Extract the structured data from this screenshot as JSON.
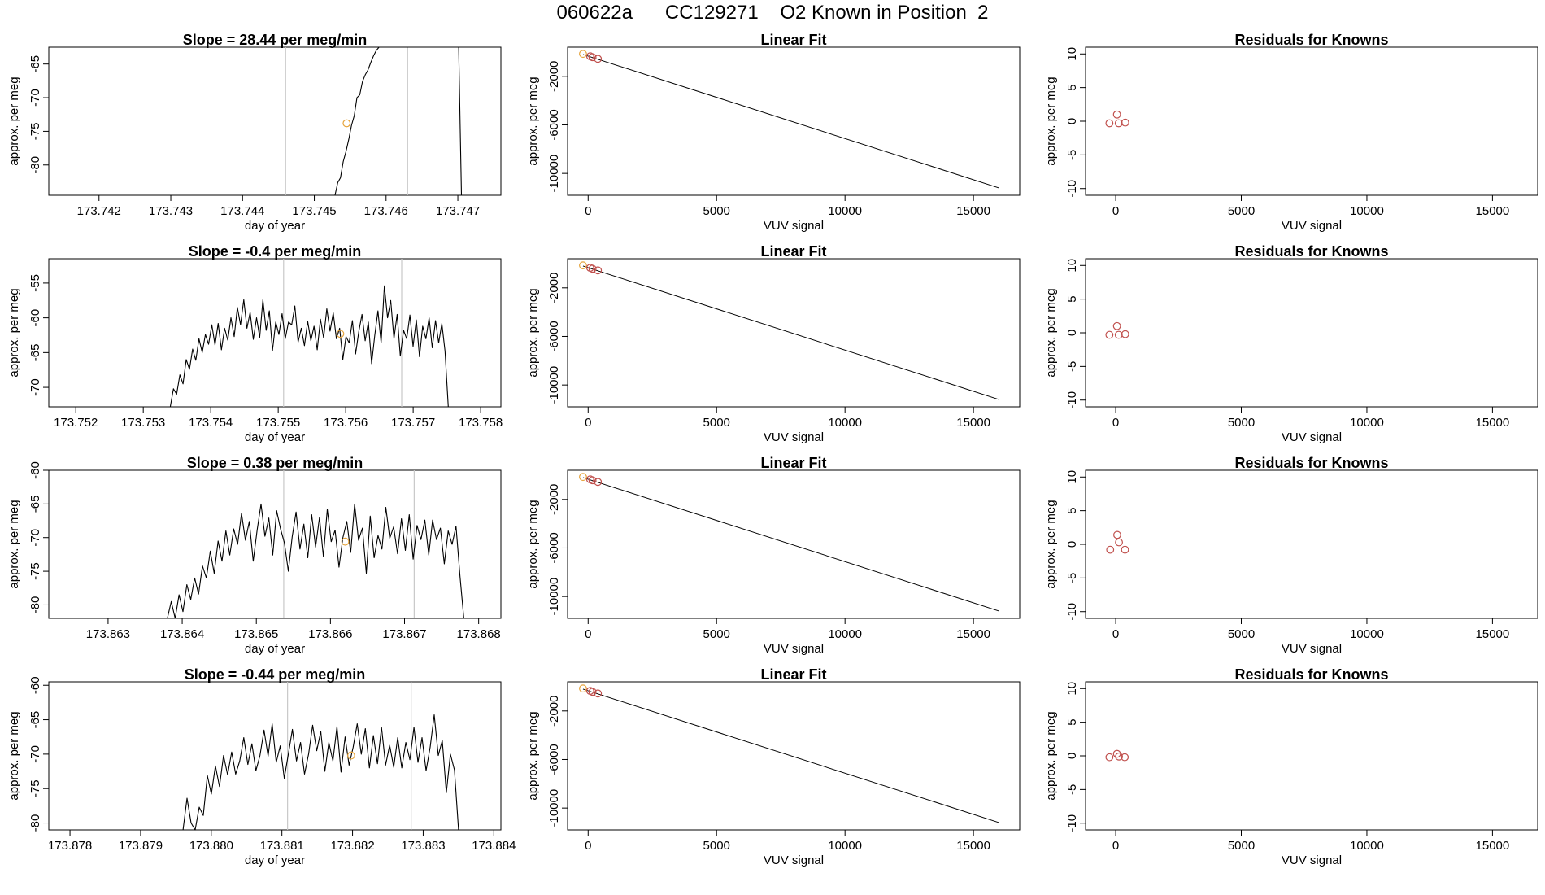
{
  "figure": {
    "title": "060622a      CC129271    O2 Known in Position  2"
  },
  "chart_data": [
    {
      "type": "line",
      "row": 0,
      "col": 0,
      "title": "Slope =  28.44  per meg/min",
      "xlabel": "day of year",
      "ylabel": "approx. per meg",
      "xlim": [
        173.7413,
        173.7476
      ],
      "ylim": [
        -84.5,
        -62.5
      ],
      "xticks": [
        "173.742",
        "173.743",
        "173.744",
        "173.745",
        "173.746",
        "173.747"
      ],
      "yticks": [
        -65,
        -70,
        -75,
        -80
      ],
      "vlines": [
        173.7446,
        173.7463
      ],
      "series_x_range": [
        173.74525,
        173.74705
      ],
      "series": [
        {
          "name": "trace",
          "values": [
            -84.5,
            -84.5,
            -82.6,
            -81.9,
            -79.5,
            -78.0,
            -76.2,
            -74.1,
            -72.7,
            -70.0,
            -69.6,
            -67.6,
            -66.6,
            -65.9,
            -64.8,
            -63.8,
            -63.0,
            -62.5,
            -62.5,
            -62.5,
            -62.5,
            -62.5,
            -62.5,
            -62.5,
            -62.5,
            -62.5,
            -62.5,
            -62.5,
            -62.5,
            -62.5,
            -62.5,
            -62.5,
            -62.5,
            -62.5,
            -62.5,
            -62.5,
            -62.5,
            -62.5,
            -62.5,
            -62.5,
            -62.5,
            -62.5,
            -62.5,
            -62.5,
            -62.5,
            -62.5,
            -62.5,
            -84.5
          ]
        }
      ],
      "points": [
        {
          "x": 173.74545,
          "y": -73.8,
          "color": "#e6a43c"
        }
      ]
    },
    {
      "type": "line",
      "row": 0,
      "col": 1,
      "title": "Linear Fit",
      "xlabel": "VUV signal",
      "ylabel": "approx. per meg",
      "xlim": [
        -800,
        16800
      ],
      "ylim": [
        -11800,
        400
      ],
      "xticks": [
        0,
        5000,
        10000,
        15000
      ],
      "yticks": [
        -2000,
        -6000,
        -10000
      ],
      "line": [
        [
          -200,
          -200
        ],
        [
          16000,
          -11200
        ]
      ],
      "points": [
        {
          "x": -200,
          "y": -150,
          "color": "#e6a43c"
        },
        {
          "x": 80,
          "y": -350,
          "color": "#c0504d"
        },
        {
          "x": 170,
          "y": -420,
          "color": "#c0504d"
        },
        {
          "x": 380,
          "y": -560,
          "color": "#c0504d"
        }
      ]
    },
    {
      "type": "scatter",
      "row": 0,
      "col": 2,
      "title": "Residuals for Knowns",
      "xlabel": "VUV signal",
      "ylabel": "approx. per meg",
      "xlim": [
        -1200,
        16800
      ],
      "ylim": [
        -11,
        11
      ],
      "xticks": [
        0,
        5000,
        10000,
        15000
      ],
      "yticks": [
        10,
        5,
        0,
        -5,
        -10
      ],
      "points": [
        {
          "x": -250,
          "y": -0.3,
          "color": "#c0504d"
        },
        {
          "x": 50,
          "y": 1.0,
          "color": "#c0504d"
        },
        {
          "x": 120,
          "y": -0.3,
          "color": "#c0504d"
        },
        {
          "x": 380,
          "y": -0.2,
          "color": "#c0504d"
        }
      ]
    },
    {
      "type": "line",
      "row": 1,
      "col": 0,
      "title": "Slope =  -0.4  per meg/min",
      "xlabel": "day of year",
      "ylabel": "approx. per meg",
      "xlim": [
        173.7516,
        173.7583
      ],
      "ylim": [
        -72.8,
        -51.5
      ],
      "xticks": [
        "173.752",
        "173.753",
        "173.754",
        "173.755",
        "173.756",
        "173.757",
        "173.758"
      ],
      "yticks": [
        -55,
        -60,
        -65,
        -70
      ],
      "vlines": [
        173.75508,
        173.75683
      ],
      "series_x_range": [
        173.7534,
        173.75752
      ],
      "series": [
        {
          "name": "trace",
          "values": [
            -72.8,
            -70.2,
            -71.0,
            -68.2,
            -69.5,
            -66.0,
            -67.4,
            -64.5,
            -66.1,
            -63.0,
            -65.0,
            -62.4,
            -63.8,
            -61.0,
            -63.9,
            -60.8,
            -64.6,
            -61.5,
            -63.2,
            -60.0,
            -62.7,
            -58.5,
            -61.0,
            -57.4,
            -61.5,
            -59.2,
            -63.1,
            -60.0,
            -62.8,
            -57.4,
            -61.8,
            -59.0,
            -64.7,
            -60.6,
            -62.4,
            -59.4,
            -63.0,
            -60.6,
            -61.0,
            -58.3,
            -63.5,
            -61.5,
            -64.0,
            -60.5,
            -63.3,
            -61.2,
            -64.6,
            -60.2,
            -62.9,
            -58.7,
            -61.9,
            -59.3,
            -63.0,
            -61.5,
            -66.0,
            -62.7,
            -63.6,
            -60.4,
            -65.2,
            -62.0,
            -59.5,
            -63.3,
            -60.6,
            -66.6,
            -62.5,
            -59.0,
            -63.6,
            -55.4,
            -60.0,
            -57.5,
            -63.0,
            -59.5,
            -65.5,
            -61.8,
            -63.0,
            -59.6,
            -64.1,
            -60.3,
            -65.6,
            -61.2,
            -63.0,
            -60.0,
            -64.3,
            -60.4,
            -63.6,
            -60.8,
            -64.8,
            -72.8
          ]
        }
      ],
      "points": [
        {
          "x": 173.75592,
          "y": -62.3,
          "color": "#e6a43c"
        }
      ]
    },
    {
      "type": "line",
      "row": 1,
      "col": 1,
      "title": "Linear Fit",
      "xlabel": "VUV signal",
      "ylabel": "approx. per meg",
      "xlim": [
        -800,
        16800
      ],
      "ylim": [
        -11800,
        400
      ],
      "xticks": [
        0,
        5000,
        10000,
        15000
      ],
      "yticks": [
        -2000,
        -6000,
        -10000
      ],
      "line": [
        [
          -200,
          -200
        ],
        [
          16000,
          -11200
        ]
      ],
      "points": [
        {
          "x": -200,
          "y": -150,
          "color": "#e6a43c"
        },
        {
          "x": 80,
          "y": -350,
          "color": "#c0504d"
        },
        {
          "x": 170,
          "y": -420,
          "color": "#c0504d"
        },
        {
          "x": 380,
          "y": -560,
          "color": "#c0504d"
        }
      ]
    },
    {
      "type": "scatter",
      "row": 1,
      "col": 2,
      "title": "Residuals for Knowns",
      "xlabel": "VUV signal",
      "ylabel": "approx. per meg",
      "xlim": [
        -1200,
        16800
      ],
      "ylim": [
        -11,
        11
      ],
      "xticks": [
        0,
        5000,
        10000,
        15000
      ],
      "yticks": [
        10,
        5,
        0,
        -5,
        -10
      ],
      "points": [
        {
          "x": -250,
          "y": -0.3,
          "color": "#c0504d"
        },
        {
          "x": 50,
          "y": 1.0,
          "color": "#c0504d"
        },
        {
          "x": 120,
          "y": -0.3,
          "color": "#c0504d"
        },
        {
          "x": 380,
          "y": -0.2,
          "color": "#c0504d"
        }
      ]
    },
    {
      "type": "line",
      "row": 2,
      "col": 0,
      "title": "Slope =  0.38  per meg/min",
      "xlabel": "day of year",
      "ylabel": "approx. per meg",
      "xlim": [
        173.8622,
        173.8683
      ],
      "ylim": [
        -82.0,
        -60.0
      ],
      "xticks": [
        "173.863",
        "173.864",
        "173.865",
        "173.866",
        "173.867",
        "173.868"
      ],
      "yticks": [
        -60,
        -65,
        -70,
        -75,
        -80
      ],
      "vlines": [
        173.86537,
        173.86713
      ],
      "series_x_range": [
        173.8638,
        173.8678
      ],
      "series": [
        {
          "name": "trace",
          "values": [
            -82.0,
            -79.5,
            -82.0,
            -78.5,
            -81.0,
            -77.0,
            -79.2,
            -76.0,
            -78.4,
            -74.2,
            -76.0,
            -72.0,
            -75.3,
            -70.5,
            -73.5,
            -69.0,
            -72.6,
            -68.7,
            -71.0,
            -66.4,
            -70.4,
            -67.6,
            -73.5,
            -68.9,
            -65.0,
            -69.8,
            -67.1,
            -72.6,
            -66.0,
            -68.7,
            -70.8,
            -75.0,
            -69.9,
            -66.2,
            -71.7,
            -68.0,
            -73.0,
            -66.6,
            -71.4,
            -67.0,
            -72.8,
            -65.8,
            -70.6,
            -68.9,
            -74.4,
            -70.0,
            -67.6,
            -72.2,
            -65.0,
            -70.4,
            -68.6,
            -75.3,
            -66.8,
            -73.0,
            -69.7,
            -71.7,
            -65.5,
            -70.1,
            -68.4,
            -72.4,
            -67.2,
            -71.9,
            -66.6,
            -73.2,
            -68.2,
            -70.3,
            -67.4,
            -72.6,
            -67.4,
            -70.3,
            -68.6,
            -73.9,
            -69.0,
            -71.0,
            -68.3,
            -75.6,
            -82.0
          ]
        }
      ],
      "points": [
        {
          "x": 173.8662,
          "y": -70.6,
          "color": "#e6a43c"
        }
      ]
    },
    {
      "type": "line",
      "row": 2,
      "col": 1,
      "title": "Linear Fit",
      "xlabel": "VUV signal",
      "ylabel": "approx. per meg",
      "xlim": [
        -800,
        16800
      ],
      "ylim": [
        -11800,
        400
      ],
      "xticks": [
        0,
        5000,
        10000,
        15000
      ],
      "yticks": [
        -2000,
        -6000,
        -10000
      ],
      "line": [
        [
          -200,
          -200
        ],
        [
          16000,
          -11200
        ]
      ],
      "points": [
        {
          "x": -200,
          "y": -150,
          "color": "#e6a43c"
        },
        {
          "x": 80,
          "y": -350,
          "color": "#c0504d"
        },
        {
          "x": 170,
          "y": -420,
          "color": "#c0504d"
        },
        {
          "x": 380,
          "y": -560,
          "color": "#c0504d"
        }
      ]
    },
    {
      "type": "scatter",
      "row": 2,
      "col": 2,
      "title": "Residuals for Knowns",
      "xlabel": "VUV signal",
      "ylabel": "approx. per meg",
      "xlim": [
        -1200,
        16800
      ],
      "ylim": [
        -11,
        11
      ],
      "xticks": [
        0,
        5000,
        10000,
        15000
      ],
      "yticks": [
        10,
        5,
        0,
        -5,
        -10
      ],
      "points": [
        {
          "x": -220,
          "y": -0.8,
          "color": "#c0504d"
        },
        {
          "x": 60,
          "y": 1.4,
          "color": "#c0504d"
        },
        {
          "x": 130,
          "y": 0.3,
          "color": "#c0504d"
        },
        {
          "x": 370,
          "y": -0.8,
          "color": "#c0504d"
        }
      ]
    },
    {
      "type": "line",
      "row": 3,
      "col": 0,
      "title": "Slope =  -0.44  per meg/min",
      "xlabel": "day of year",
      "ylabel": "approx. per meg",
      "xlim": [
        173.8777,
        173.8841
      ],
      "ylim": [
        -81.0,
        -59.5
      ],
      "xticks": [
        "173.878",
        "173.879",
        "173.880",
        "173.881",
        "173.882",
        "173.883",
        "173.884"
      ],
      "yticks": [
        -60,
        -65,
        -70,
        -75,
        -80
      ],
      "vlines": [
        173.88108,
        173.88283
      ],
      "series_x_range": [
        173.8796,
        173.8835
      ],
      "series": [
        {
          "name": "trace",
          "values": [
            -81.0,
            -76.4,
            -80.0,
            -81.0,
            -77.7,
            -78.9,
            -73.1,
            -75.8,
            -71.7,
            -74.7,
            -70.2,
            -73.0,
            -69.7,
            -72.9,
            -71.0,
            -67.6,
            -71.5,
            -68.5,
            -72.4,
            -70.2,
            -66.5,
            -70.3,
            -65.6,
            -71.2,
            -68.8,
            -73.5,
            -70.0,
            -66.4,
            -71.0,
            -68.3,
            -72.9,
            -70.0,
            -65.8,
            -69.5,
            -66.7,
            -72.5,
            -68.3,
            -71.0,
            -66.0,
            -72.6,
            -67.5,
            -71.6,
            -69.0,
            -65.6,
            -70.0,
            -66.3,
            -72.0,
            -67.3,
            -71.4,
            -66.1,
            -71.6,
            -68.7,
            -71.9,
            -67.6,
            -72.0,
            -68.3,
            -70.8,
            -66.1,
            -71.2,
            -67.6,
            -72.4,
            -69.0,
            -64.3,
            -70.2,
            -68.0,
            -75.6,
            -70.0,
            -72.3,
            -81.0
          ]
        }
      ],
      "points": [
        {
          "x": 173.88198,
          "y": -70.2,
          "color": "#e6a43c"
        }
      ]
    },
    {
      "type": "line",
      "row": 3,
      "col": 1,
      "title": "Linear Fit",
      "xlabel": "VUV signal",
      "ylabel": "approx. per meg",
      "xlim": [
        -800,
        16800
      ],
      "ylim": [
        -11800,
        400
      ],
      "xticks": [
        0,
        5000,
        10000,
        15000
      ],
      "yticks": [
        -2000,
        -6000,
        -10000
      ],
      "line": [
        [
          -200,
          -200
        ],
        [
          16000,
          -11200
        ]
      ],
      "points": [
        {
          "x": -200,
          "y": -150,
          "color": "#e6a43c"
        },
        {
          "x": 80,
          "y": -350,
          "color": "#c0504d"
        },
        {
          "x": 170,
          "y": -420,
          "color": "#c0504d"
        },
        {
          "x": 380,
          "y": -560,
          "color": "#c0504d"
        }
      ]
    },
    {
      "type": "scatter",
      "row": 3,
      "col": 2,
      "title": "Residuals for Knowns",
      "xlabel": "VUV signal",
      "ylabel": "approx. per meg",
      "xlim": [
        -1200,
        16800
      ],
      "ylim": [
        -11,
        11
      ],
      "xticks": [
        0,
        5000,
        10000,
        15000
      ],
      "yticks": [
        10,
        5,
        0,
        -5,
        -10
      ],
      "points": [
        {
          "x": -250,
          "y": -0.2,
          "color": "#c0504d"
        },
        {
          "x": 50,
          "y": 0.3,
          "color": "#c0504d"
        },
        {
          "x": 130,
          "y": -0.1,
          "color": "#c0504d"
        },
        {
          "x": 360,
          "y": -0.2,
          "color": "#c0504d"
        }
      ]
    }
  ]
}
